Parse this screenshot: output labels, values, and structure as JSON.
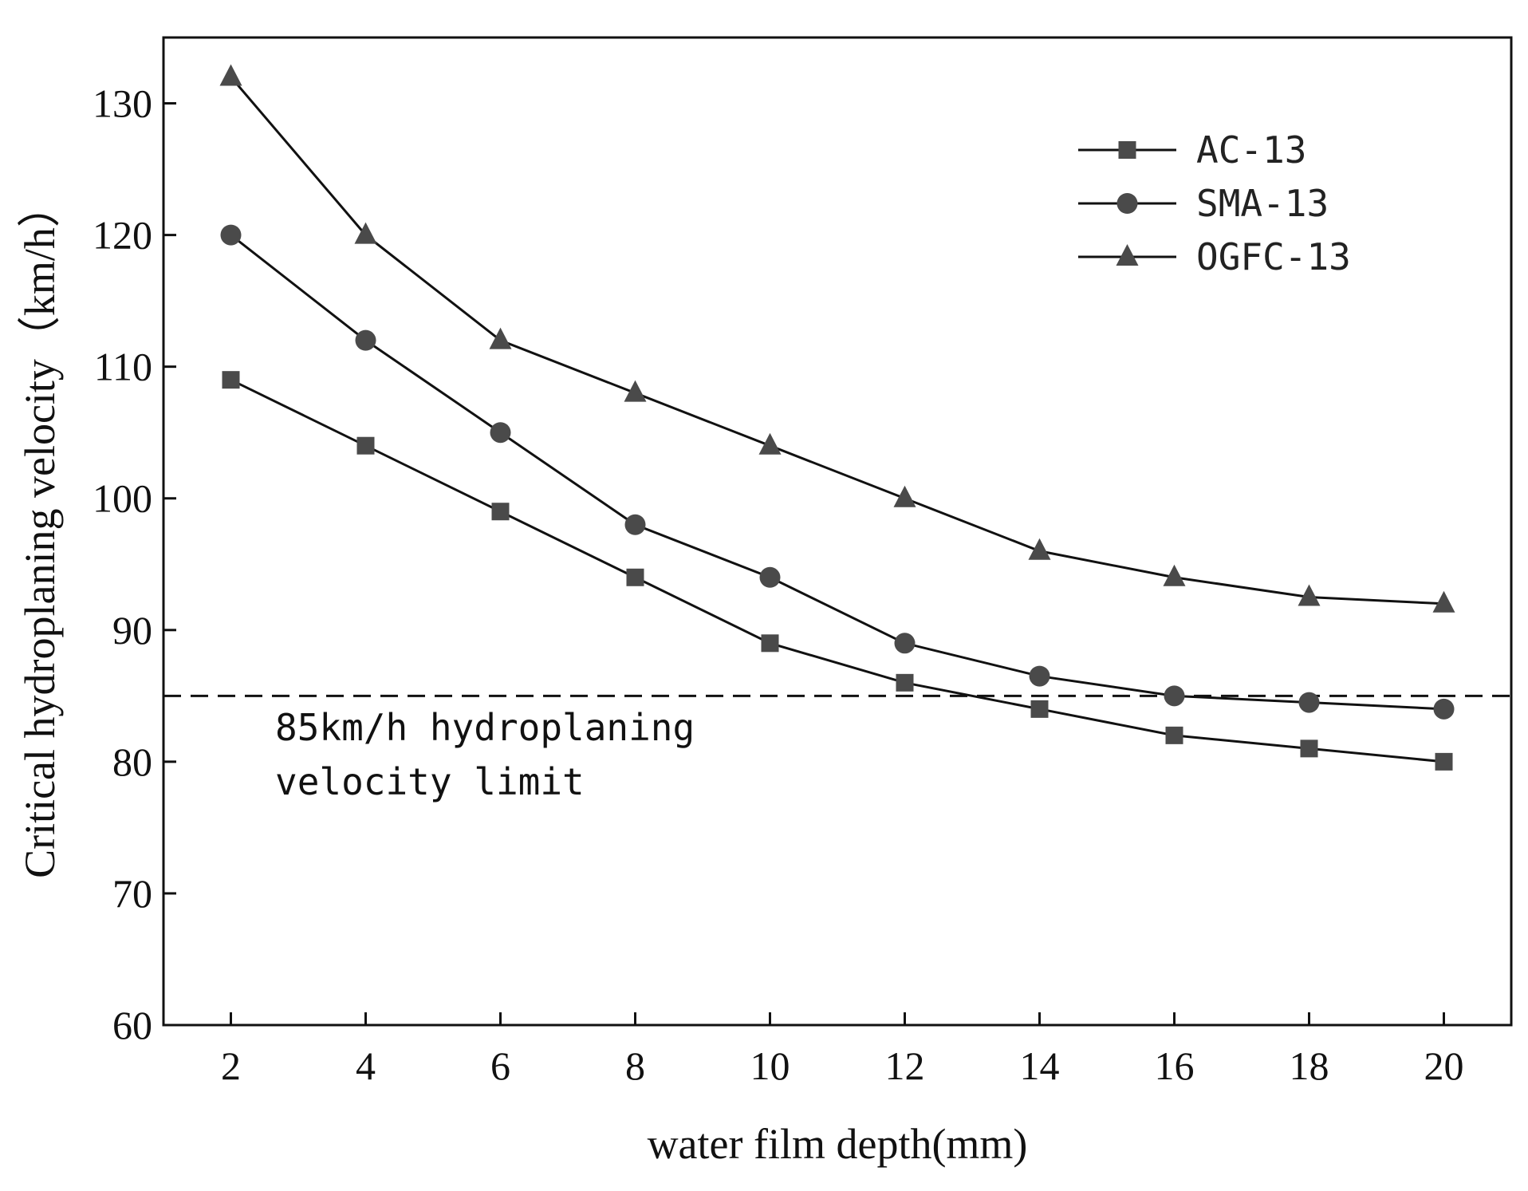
{
  "chart_data": {
    "type": "line",
    "title": "",
    "xlabel": "water film depth(mm)",
    "ylabel": "Critical hydroplaning velocity（km/h）",
    "x": [
      2,
      4,
      6,
      8,
      10,
      12,
      14,
      16,
      18,
      20
    ],
    "xticks": [
      2,
      4,
      6,
      8,
      10,
      12,
      14,
      16,
      18,
      20
    ],
    "yticks": [
      60,
      70,
      80,
      90,
      100,
      110,
      120,
      130
    ],
    "xlim": [
      1,
      21
    ],
    "ylim": [
      60,
      135
    ],
    "grid": false,
    "legend_position": "top-right",
    "series": [
      {
        "name": "AC-13",
        "marker": "square",
        "color": "#4a4a4a",
        "values": [
          109,
          104,
          99,
          94,
          89,
          86,
          84,
          82,
          81,
          80
        ]
      },
      {
        "name": "SMA-13",
        "marker": "circle",
        "color": "#4a4a4a",
        "values": [
          120,
          112,
          105,
          98,
          94,
          89,
          86.5,
          85,
          84.5,
          84
        ]
      },
      {
        "name": "OGFC-13",
        "marker": "triangle",
        "color": "#4a4a4a",
        "values": [
          132,
          120,
          112,
          108,
          104,
          100,
          96,
          94,
          92.5,
          92
        ]
      }
    ],
    "reference_line": {
      "y": 85,
      "style": "dashed",
      "label_lines": [
        "85km/h hydroplaning",
        "velocity limit"
      ]
    }
  }
}
